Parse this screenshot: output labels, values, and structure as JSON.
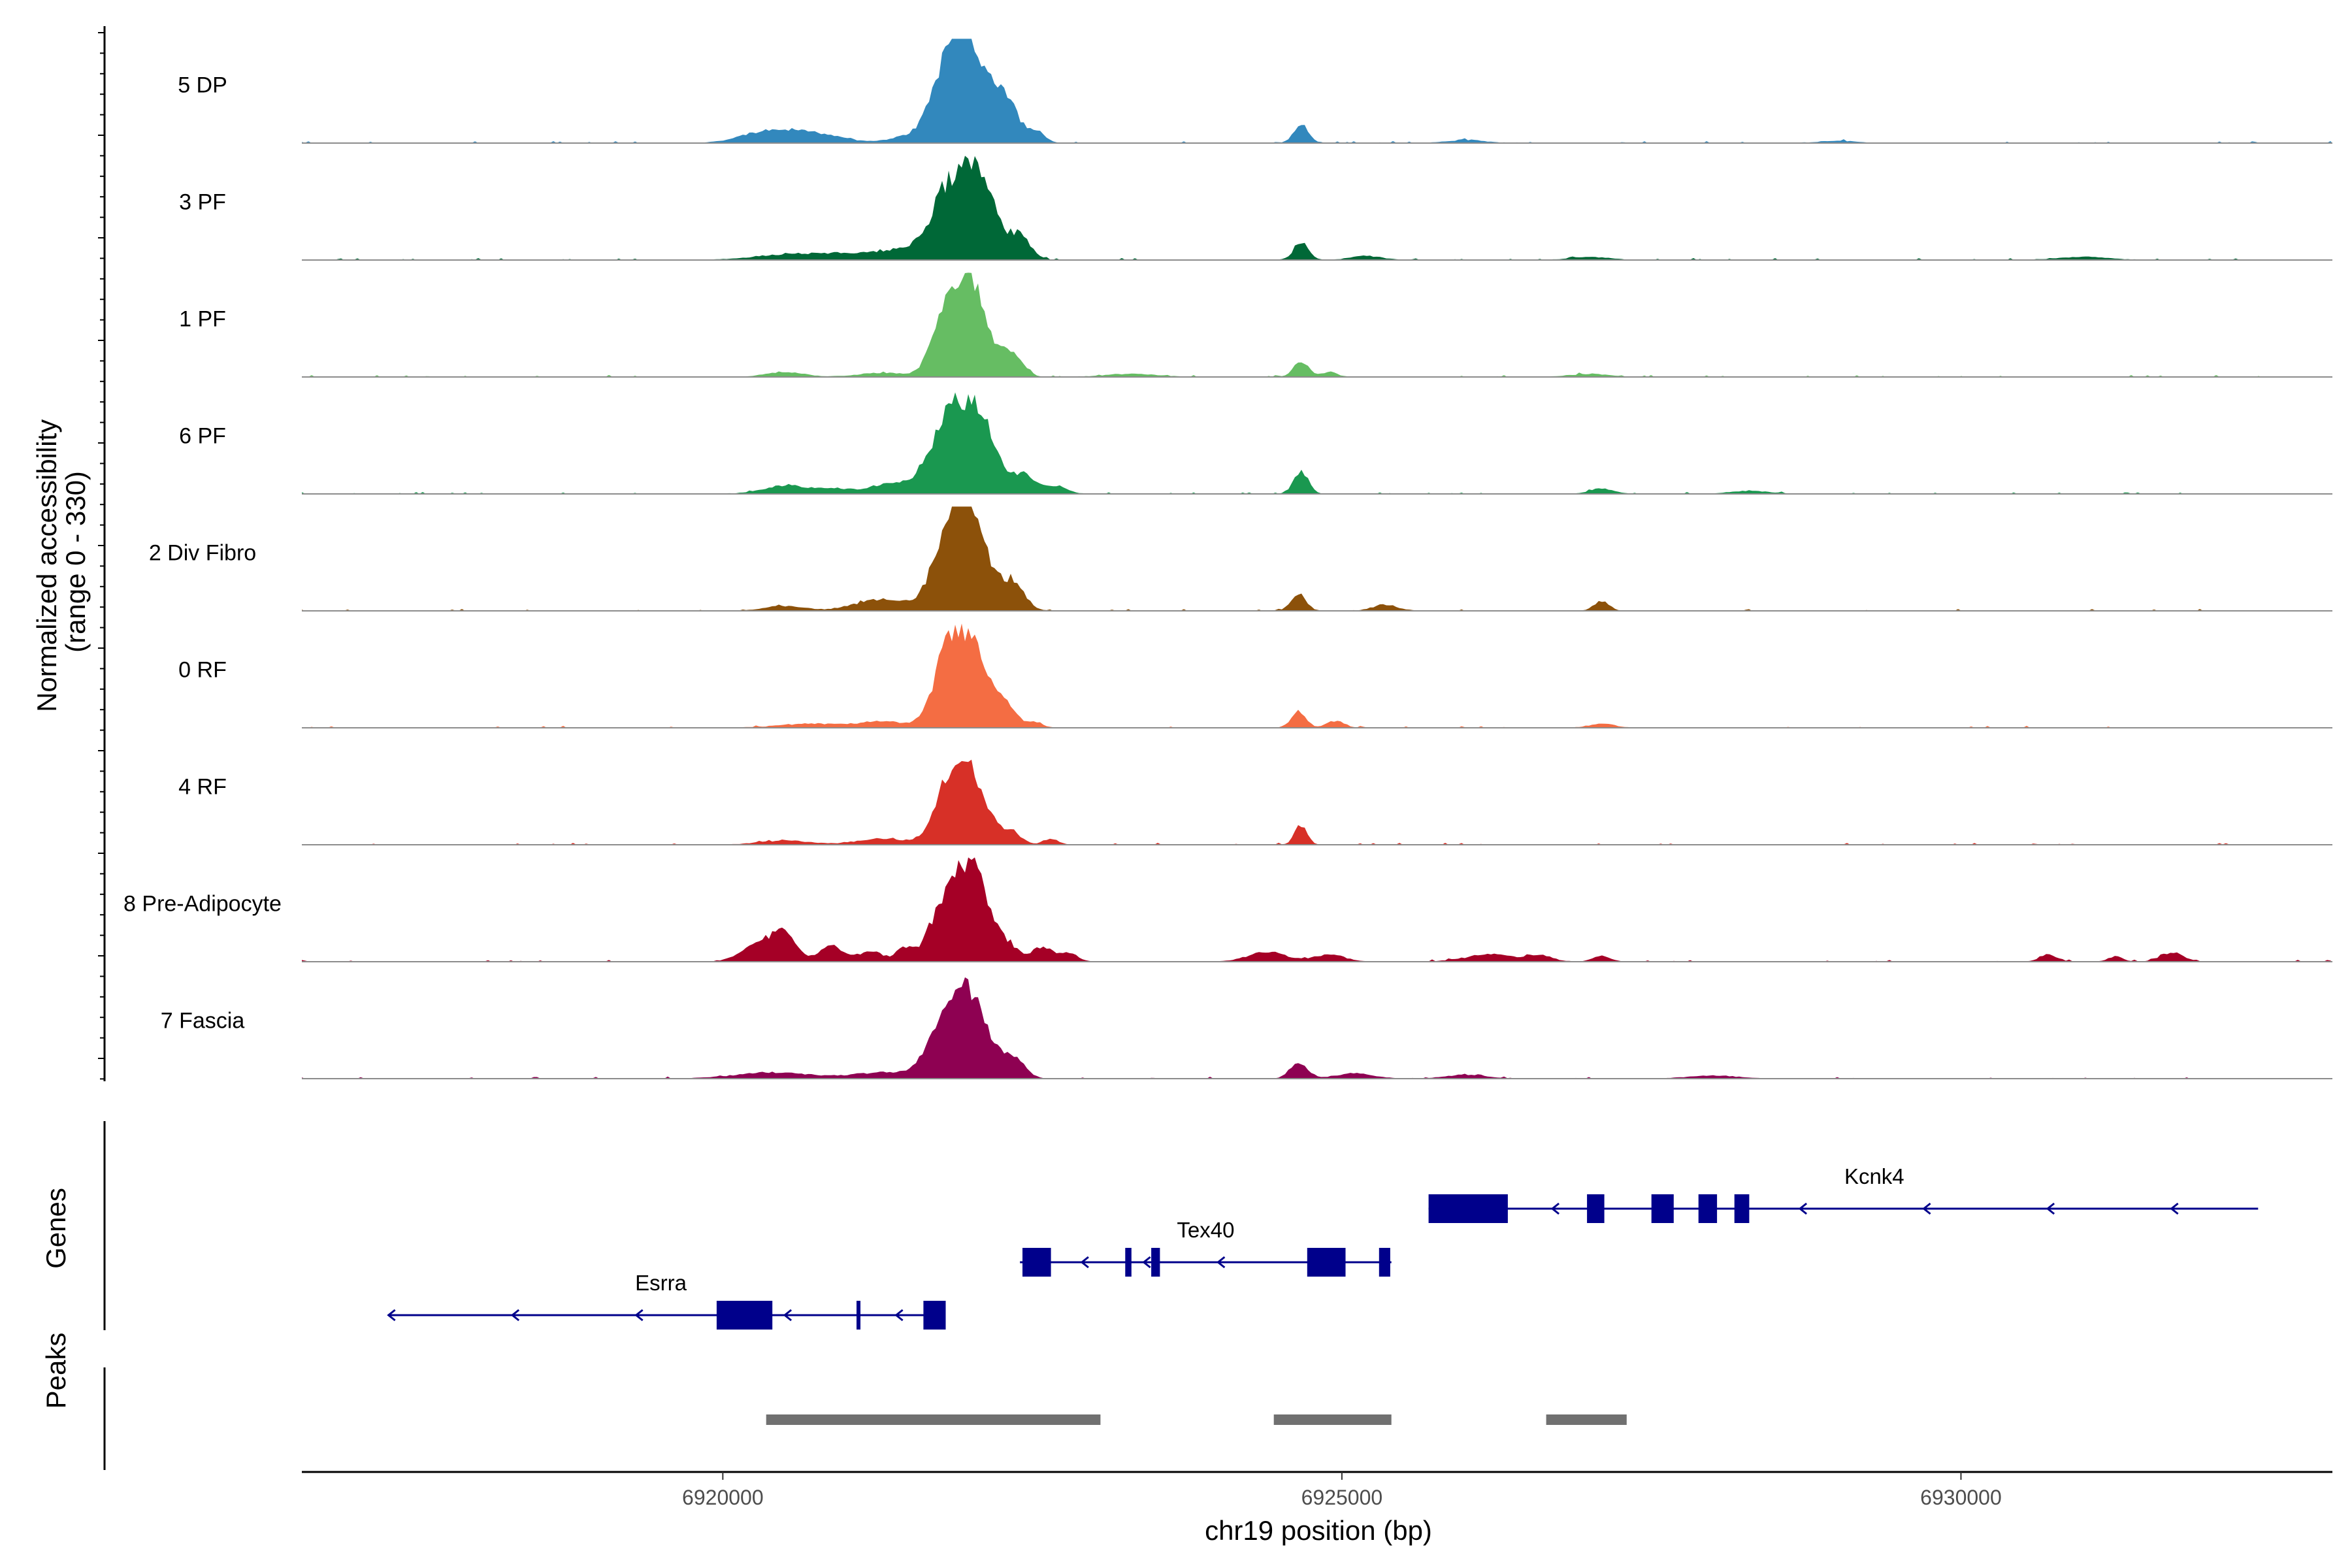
{
  "chart_data": {
    "type": "area",
    "title": "",
    "chromosome": "chr19",
    "xlabel": "chr19 position (bp)",
    "xlim": [
      6916600,
      6933000
    ],
    "xticks": [
      6920000,
      6925000,
      6930000
    ],
    "ylabel_line1": "Normalized accessibility",
    "ylabel_line2": "(range 0 - 330)",
    "ylim": [
      0,
      330
    ],
    "tracks": [
      {
        "name": "5 DP",
        "color": "#3288bd",
        "peaks": [
          [
            6920400,
            0.13,
            220
          ],
          [
            6920800,
            0.07,
            200
          ],
          [
            6921500,
            0.06,
            160
          ],
          [
            6921800,
            0.55,
            130
          ],
          [
            6922000,
            0.92,
            150
          ],
          [
            6922300,
            0.35,
            90
          ],
          [
            6922530,
            0.12,
            70
          ],
          [
            6924670,
            0.17,
            60
          ],
          [
            6926000,
            0.03,
            150
          ],
          [
            6929000,
            0.02,
            150
          ]
        ]
      },
      {
        "name": "3 PF",
        "color": "#006837",
        "peaks": [
          [
            6920500,
            0.05,
            250
          ],
          [
            6921000,
            0.06,
            260
          ],
          [
            6921500,
            0.1,
            200
          ],
          [
            6921800,
            0.55,
            130
          ],
          [
            6922050,
            0.88,
            140
          ],
          [
            6922400,
            0.22,
            90
          ],
          [
            6924670,
            0.17,
            60
          ],
          [
            6925200,
            0.04,
            120
          ],
          [
            6927000,
            0.03,
            150
          ],
          [
            6931000,
            0.03,
            200
          ]
        ]
      },
      {
        "name": "1 PF",
        "color": "#66bd63",
        "peaks": [
          [
            6920500,
            0.05,
            150
          ],
          [
            6921300,
            0.04,
            200
          ],
          [
            6921800,
            0.5,
            110
          ],
          [
            6922000,
            0.9,
            140
          ],
          [
            6922350,
            0.22,
            80
          ],
          [
            6923300,
            0.03,
            200
          ],
          [
            6924670,
            0.16,
            60
          ],
          [
            6924900,
            0.05,
            60
          ],
          [
            6927000,
            0.03,
            150
          ]
        ]
      },
      {
        "name": "6 PF",
        "color": "#1a9850",
        "peaks": [
          [
            6920500,
            0.08,
            180
          ],
          [
            6920900,
            0.05,
            150
          ],
          [
            6921350,
            0.1,
            160
          ],
          [
            6921800,
            0.6,
            150
          ],
          [
            6922050,
            0.75,
            150
          ],
          [
            6922450,
            0.18,
            90
          ],
          [
            6922700,
            0.08,
            80
          ],
          [
            6924670,
            0.22,
            60
          ],
          [
            6927100,
            0.05,
            100
          ],
          [
            6928300,
            0.03,
            150
          ]
        ]
      },
      {
        "name": "2 Div Fibro",
        "color": "#8c510a",
        "peaks": [
          [
            6920500,
            0.05,
            150
          ],
          [
            6921300,
            0.12,
            220
          ],
          [
            6921800,
            0.55,
            120
          ],
          [
            6922000,
            0.95,
            140
          ],
          [
            6922350,
            0.28,
            90
          ],
          [
            6924650,
            0.18,
            60
          ],
          [
            6925350,
            0.06,
            100
          ],
          [
            6927100,
            0.1,
            60
          ]
        ]
      },
      {
        "name": "0 RF",
        "color": "#f46d43",
        "peaks": [
          [
            6920700,
            0.04,
            250
          ],
          [
            6921300,
            0.06,
            200
          ],
          [
            6921800,
            0.55,
            110
          ],
          [
            6922000,
            0.82,
            140
          ],
          [
            6922300,
            0.18,
            80
          ],
          [
            6922520,
            0.06,
            60
          ],
          [
            6924650,
            0.16,
            60
          ],
          [
            6924950,
            0.07,
            70
          ],
          [
            6927100,
            0.04,
            100
          ]
        ]
      },
      {
        "name": "4 RF",
        "color": "#d73027",
        "peaks": [
          [
            6920500,
            0.04,
            200
          ],
          [
            6921300,
            0.06,
            200
          ],
          [
            6921800,
            0.45,
            110
          ],
          [
            6922000,
            0.68,
            130
          ],
          [
            6922330,
            0.12,
            80
          ],
          [
            6922650,
            0.06,
            60
          ],
          [
            6924670,
            0.2,
            50
          ]
        ]
      },
      {
        "name": "8 Pre-Adipocyte",
        "color": "#a50026",
        "peaks": [
          [
            6920300,
            0.18,
            140
          ],
          [
            6920500,
            0.28,
            90
          ],
          [
            6920880,
            0.15,
            100
          ],
          [
            6921200,
            0.1,
            100
          ],
          [
            6921480,
            0.14,
            70
          ],
          [
            6921750,
            0.45,
            100
          ],
          [
            6921950,
            0.8,
            110
          ],
          [
            6922100,
            0.5,
            90
          ],
          [
            6922300,
            0.18,
            80
          ],
          [
            6922580,
            0.14,
            90
          ],
          [
            6922800,
            0.08,
            70
          ],
          [
            6924400,
            0.1,
            150
          ],
          [
            6924900,
            0.07,
            120
          ],
          [
            6926200,
            0.07,
            200
          ],
          [
            6926600,
            0.06,
            100
          ],
          [
            6927100,
            0.06,
            70
          ],
          [
            6930700,
            0.07,
            70
          ],
          [
            6931250,
            0.05,
            60
          ],
          [
            6931700,
            0.09,
            90
          ]
        ]
      },
      {
        "name": "7 Fascia",
        "color": "#8e0152",
        "peaks": [
          [
            6920400,
            0.06,
            300
          ],
          [
            6921300,
            0.06,
            250
          ],
          [
            6921800,
            0.5,
            140
          ],
          [
            6922000,
            0.72,
            150
          ],
          [
            6922350,
            0.18,
            90
          ],
          [
            6924650,
            0.15,
            70
          ],
          [
            6925100,
            0.05,
            150
          ],
          [
            6926000,
            0.04,
            150
          ],
          [
            6928000,
            0.03,
            200
          ]
        ]
      }
    ],
    "genes_label": "Genes",
    "gene_color": "#00008b",
    "genes": [
      {
        "name": "Esrra",
        "strand": "-",
        "row": 0,
        "start": 6917300,
        "end": 6921800,
        "label_x": 6919500,
        "exons": [
          [
            6919950,
            6920400
          ],
          [
            6921080,
            6921100
          ],
          [
            6921620,
            6921800
          ]
        ],
        "arrows": [
          6917300,
          6918300,
          6919300,
          6920500,
          6921400
        ]
      },
      {
        "name": "Tex40",
        "strand": "-",
        "row": 1,
        "start": 6922400,
        "end": 6925400,
        "label_x": 6923900,
        "exons": [
          [
            6922420,
            6922650
          ],
          [
            6923250,
            6923300
          ],
          [
            6923460,
            6923530
          ],
          [
            6924720,
            6925030
          ],
          [
            6925300,
            6925390
          ]
        ],
        "arrows": [
          6922900,
          6923400,
          6924000
        ]
      },
      {
        "name": "Kcnk4",
        "strand": "-",
        "row": 2,
        "start": 6925700,
        "end": 6932400,
        "label_x": 6929300,
        "exons": [
          [
            6925700,
            6926340
          ],
          [
            6926980,
            6927120
          ],
          [
            6927500,
            6927680
          ],
          [
            6927880,
            6928030
          ],
          [
            6928170,
            6928290
          ]
        ],
        "arrows": [
          6926700,
          6928700,
          6929700,
          6930700,
          6931700
        ]
      }
    ],
    "peaks_label": "Peaks",
    "peak_color": "#707070",
    "peak_regions": [
      [
        6920350,
        6923050
      ],
      [
        6924450,
        6925400
      ],
      [
        6926650,
        6927300
      ]
    ]
  }
}
